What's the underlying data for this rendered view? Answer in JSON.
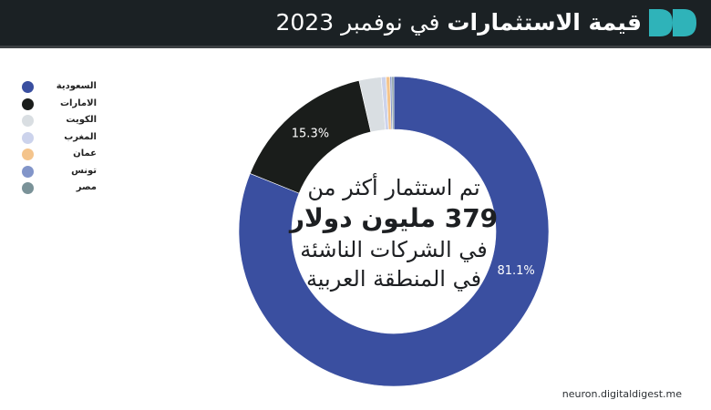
{
  "header": {
    "title_bold": "قيمة الاستثمارات",
    "title_rest": "في نوفمبر 2023",
    "logo_icon": "double-play-logo",
    "logo_color": "#2fb3b9",
    "background": "#1b2124"
  },
  "center": {
    "line1": "تم استثمار أكثر من",
    "line2": "379 مليون دولار",
    "line3": "في الشركات الناشئة",
    "line4": "في المنطقة العربية"
  },
  "source": "neuron.digitaldigest.me",
  "chart_data": {
    "type": "pie",
    "donut": true,
    "categories": [
      "السعودية",
      "الامارات",
      "الكويت",
      "المغرب",
      "عمان",
      "تونس",
      "مصر"
    ],
    "values": [
      81.1,
      15.3,
      2.3,
      0.5,
      0.4,
      0.2,
      0.2
    ],
    "colors": [
      "#3a4fa0",
      "#1a1d1b",
      "#d9dee2",
      "#ccd3ec",
      "#f4c48c",
      "#8295c9",
      "#7a9298"
    ],
    "data_labels": [
      "81.1%",
      "15.3%",
      "",
      "",
      "",
      "",
      ""
    ],
    "legend_position": "left"
  }
}
